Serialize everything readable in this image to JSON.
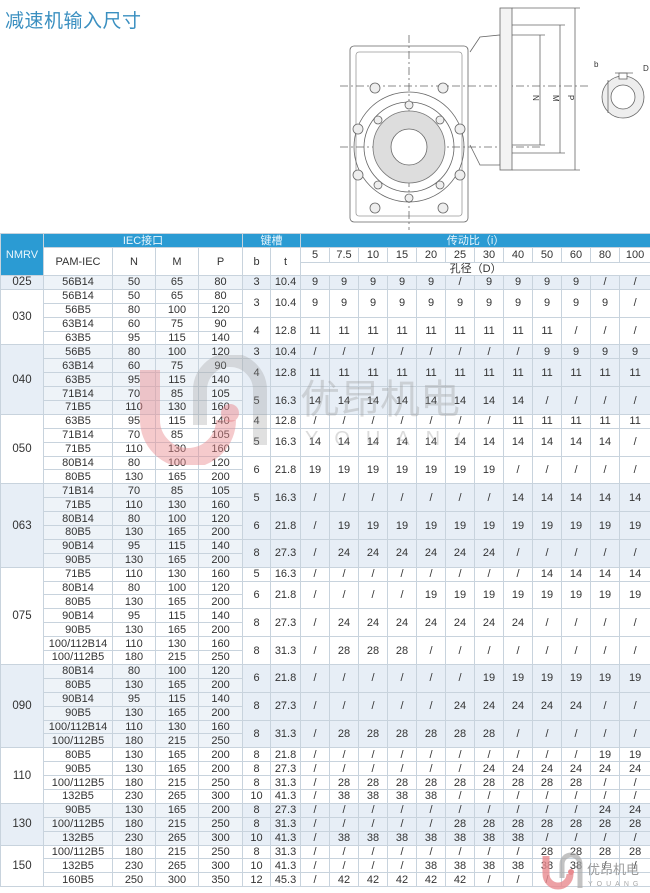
{
  "title": "减速机输入尺寸",
  "drawing": {
    "labels": {
      "n": "N",
      "m": "M",
      "p": "P",
      "b": "b",
      "t": "t",
      "d": "D"
    }
  },
  "watermark": {
    "cn": "优昂机电",
    "en": "YOUANG"
  },
  "colors": {
    "header": "#2b9bd3",
    "shade": "#e7eef6",
    "title": "#3a8fc0",
    "watermark_red": "#e88a8f"
  },
  "table": {
    "headers": {
      "nmrv": "NMRV",
      "iec": "IEC接口",
      "key": "键槽",
      "ratio": "传动比（i）",
      "pam": "PAM-IEC",
      "n": "N",
      "m": "M",
      "p": "P",
      "b": "b",
      "t": "t",
      "bore": "孔径（D）",
      "ratios": [
        "5",
        "7.5",
        "10",
        "15",
        "20",
        "25",
        "30",
        "40",
        "50",
        "60",
        "80",
        "100"
      ]
    },
    "groups": [
      {
        "nmrv": "025",
        "motors": [
          [
            "56B14",
            "50",
            "65",
            "80"
          ]
        ],
        "keys": [
          {
            "span": 1,
            "b": "3",
            "t": "10.4",
            "d": [
              "9",
              "9",
              "9",
              "9",
              "9",
              "/",
              "9",
              "9",
              "9",
              "9",
              "/",
              "/"
            ]
          }
        ]
      },
      {
        "nmrv": "030",
        "motors": [
          [
            "56B14",
            "50",
            "65",
            "80"
          ],
          [
            "56B5",
            "80",
            "100",
            "120"
          ],
          [
            "63B14",
            "60",
            "75",
            "90"
          ],
          [
            "63B5",
            "95",
            "115",
            "140"
          ]
        ],
        "keys": [
          {
            "span": 2,
            "b": "3",
            "t": "10.4",
            "d": [
              "9",
              "9",
              "9",
              "9",
              "9",
              "9",
              "9",
              "9",
              "9",
              "9",
              "9",
              "/"
            ]
          },
          {
            "span": 2,
            "b": "4",
            "t": "12.8",
            "d": [
              "11",
              "11",
              "11",
              "11",
              "11",
              "11",
              "11",
              "11",
              "11",
              "/",
              "/",
              "/"
            ]
          }
        ]
      },
      {
        "nmrv": "040",
        "motors": [
          [
            "56B5",
            "80",
            "100",
            "120"
          ],
          [
            "63B14",
            "60",
            "75",
            "90"
          ],
          [
            "63B5",
            "95",
            "115",
            "140"
          ],
          [
            "71B14",
            "70",
            "85",
            "105"
          ],
          [
            "71B5",
            "110",
            "130",
            "160"
          ]
        ],
        "keys": [
          {
            "span": 1,
            "b": "3",
            "t": "10.4",
            "d": [
              "/",
              "/",
              "/",
              "/",
              "/",
              "/",
              "/",
              "/",
              "9",
              "9",
              "9",
              "9"
            ]
          },
          {
            "span": 2,
            "b": "4",
            "t": "12.8",
            "d": [
              "11",
              "11",
              "11",
              "11",
              "11",
              "11",
              "11",
              "11",
              "11",
              "11",
              "11",
              "11"
            ]
          },
          {
            "span": 2,
            "b": "5",
            "t": "16.3",
            "d": [
              "14",
              "14",
              "14",
              "14",
              "14",
              "14",
              "14",
              "14",
              "/",
              "/",
              "/",
              "/"
            ]
          }
        ]
      },
      {
        "nmrv": "050",
        "motors": [
          [
            "63B5",
            "95",
            "115",
            "140"
          ],
          [
            "71B14",
            "70",
            "85",
            "105"
          ],
          [
            "71B5",
            "110",
            "130",
            "160"
          ],
          [
            "80B14",
            "80",
            "100",
            "120"
          ],
          [
            "80B5",
            "130",
            "165",
            "200"
          ]
        ],
        "keys": [
          {
            "span": 1,
            "b": "4",
            "t": "12.8",
            "d": [
              "/",
              "/",
              "/",
              "/",
              "/",
              "/",
              "/",
              "11",
              "11",
              "11",
              "11",
              "11"
            ]
          },
          {
            "span": 2,
            "b": "5",
            "t": "16.3",
            "d": [
              "14",
              "14",
              "14",
              "14",
              "14",
              "14",
              "14",
              "14",
              "14",
              "14",
              "14",
              "/"
            ]
          },
          {
            "span": 2,
            "b": "6",
            "t": "21.8",
            "d": [
              "19",
              "19",
              "19",
              "19",
              "19",
              "19",
              "19",
              "/",
              "/",
              "/",
              "/",
              "/"
            ]
          }
        ]
      },
      {
        "nmrv": "063",
        "motors": [
          [
            "71B14",
            "70",
            "85",
            "105"
          ],
          [
            "71B5",
            "110",
            "130",
            "160"
          ],
          [
            "80B14",
            "80",
            "100",
            "120"
          ],
          [
            "80B5",
            "130",
            "165",
            "200"
          ],
          [
            "90B14",
            "95",
            "115",
            "140"
          ],
          [
            "90B5",
            "130",
            "165",
            "200"
          ]
        ],
        "keys": [
          {
            "span": 2,
            "b": "5",
            "t": "16.3",
            "d": [
              "/",
              "/",
              "/",
              "/",
              "/",
              "/",
              "/",
              "14",
              "14",
              "14",
              "14",
              "14"
            ]
          },
          {
            "span": 2,
            "b": "6",
            "t": "21.8",
            "d": [
              "/",
              "19",
              "19",
              "19",
              "19",
              "19",
              "19",
              "19",
              "19",
              "19",
              "19",
              "19"
            ]
          },
          {
            "span": 2,
            "b": "8",
            "t": "27.3",
            "d": [
              "/",
              "24",
              "24",
              "24",
              "24",
              "24",
              "24",
              "/",
              "/",
              "/",
              "/",
              "/"
            ]
          }
        ]
      },
      {
        "nmrv": "075",
        "motors": [
          [
            "71B5",
            "110",
            "130",
            "160"
          ],
          [
            "80B14",
            "80",
            "100",
            "120"
          ],
          [
            "80B5",
            "130",
            "165",
            "200"
          ],
          [
            "90B14",
            "95",
            "115",
            "140"
          ],
          [
            "90B5",
            "130",
            "165",
            "200"
          ],
          [
            "100/112B14",
            "110",
            "130",
            "160"
          ],
          [
            "100/112B5",
            "180",
            "215",
            "250"
          ]
        ],
        "keys": [
          {
            "span": 1,
            "b": "5",
            "t": "16.3",
            "d": [
              "/",
              "/",
              "/",
              "/",
              "/",
              "/",
              "/",
              "/",
              "14",
              "14",
              "14",
              "14"
            ]
          },
          {
            "span": 2,
            "b": "6",
            "t": "21.8",
            "d": [
              "/",
              "/",
              "/",
              "/",
              "19",
              "19",
              "19",
              "19",
              "19",
              "19",
              "19",
              "19"
            ]
          },
          {
            "span": 2,
            "b": "8",
            "t": "27.3",
            "d": [
              "/",
              "24",
              "24",
              "24",
              "24",
              "24",
              "24",
              "24",
              "/",
              "/",
              "/",
              "/"
            ]
          },
          {
            "span": 2,
            "b": "8",
            "t": "31.3",
            "d": [
              "/",
              "28",
              "28",
              "28",
              "/",
              "/",
              "/",
              "/",
              "/",
              "/",
              "/",
              "/"
            ]
          }
        ]
      },
      {
        "nmrv": "090",
        "motors": [
          [
            "80B14",
            "80",
            "100",
            "120"
          ],
          [
            "80B5",
            "130",
            "165",
            "200"
          ],
          [
            "90B14",
            "95",
            "115",
            "140"
          ],
          [
            "90B5",
            "130",
            "165",
            "200"
          ],
          [
            "100/112B14",
            "110",
            "130",
            "160"
          ],
          [
            "100/112B5",
            "180",
            "215",
            "250"
          ]
        ],
        "keys": [
          {
            "span": 2,
            "b": "6",
            "t": "21.8",
            "d": [
              "/",
              "/",
              "/",
              "/",
              "/",
              "/",
              "19",
              "19",
              "19",
              "19",
              "19",
              "19"
            ]
          },
          {
            "span": 2,
            "b": "8",
            "t": "27.3",
            "d": [
              "/",
              "/",
              "/",
              "/",
              "/",
              "24",
              "24",
              "24",
              "24",
              "24",
              "/",
              "/"
            ]
          },
          {
            "span": 2,
            "b": "8",
            "t": "31.3",
            "d": [
              "/",
              "28",
              "28",
              "28",
              "28",
              "28",
              "28",
              "/",
              "/",
              "/",
              "/",
              "/"
            ]
          }
        ]
      },
      {
        "nmrv": "110",
        "motors": [
          [
            "80B5",
            "130",
            "165",
            "200"
          ],
          [
            "90B5",
            "130",
            "165",
            "200"
          ],
          [
            "100/112B5",
            "180",
            "215",
            "250"
          ],
          [
            "132B5",
            "230",
            "265",
            "300"
          ]
        ],
        "keys": [
          {
            "span": 1,
            "b": "8",
            "t": "21.8",
            "d": [
              "/",
              "/",
              "/",
              "/",
              "/",
              "/",
              "/",
              "/",
              "/",
              "/",
              "19",
              "19"
            ]
          },
          {
            "span": 1,
            "b": "8",
            "t": "27.3",
            "d": [
              "/",
              "/",
              "/",
              "/",
              "/",
              "/",
              "24",
              "24",
              "24",
              "24",
              "24",
              "24"
            ]
          },
          {
            "span": 1,
            "b": "8",
            "t": "31.3",
            "d": [
              "/",
              "28",
              "28",
              "28",
              "28",
              "28",
              "28",
              "28",
              "28",
              "28",
              "/",
              "/"
            ]
          },
          {
            "span": 1,
            "b": "10",
            "t": "41.3",
            "d": [
              "/",
              "38",
              "38",
              "38",
              "38",
              "/",
              "/",
              "/",
              "/",
              "/",
              "/",
              "/"
            ]
          }
        ]
      },
      {
        "nmrv": "130",
        "motors": [
          [
            "90B5",
            "130",
            "165",
            "200"
          ],
          [
            "100/112B5",
            "180",
            "215",
            "250"
          ],
          [
            "132B5",
            "230",
            "265",
            "300"
          ]
        ],
        "keys": [
          {
            "span": 1,
            "b": "8",
            "t": "27.3",
            "d": [
              "/",
              "/",
              "/",
              "/",
              "/",
              "/",
              "/",
              "/",
              "/",
              "/",
              "24",
              "24"
            ]
          },
          {
            "span": 1,
            "b": "8",
            "t": "31.3",
            "d": [
              "/",
              "/",
              "/",
              "/",
              "/",
              "28",
              "28",
              "28",
              "28",
              "28",
              "28",
              "28"
            ]
          },
          {
            "span": 1,
            "b": "10",
            "t": "41.3",
            "d": [
              "/",
              "38",
              "38",
              "38",
              "38",
              "38",
              "38",
              "38",
              "/",
              "/",
              "/",
              "/"
            ]
          }
        ]
      },
      {
        "nmrv": "150",
        "motors": [
          [
            "100/112B5",
            "180",
            "215",
            "250"
          ],
          [
            "132B5",
            "230",
            "265",
            "300"
          ],
          [
            "160B5",
            "250",
            "300",
            "350"
          ]
        ],
        "keys": [
          {
            "span": 1,
            "b": "8",
            "t": "31.3",
            "d": [
              "/",
              "/",
              "/",
              "/",
              "/",
              "/",
              "/",
              "/",
              "28",
              "28",
              "28",
              "28"
            ]
          },
          {
            "span": 1,
            "b": "10",
            "t": "41.3",
            "d": [
              "/",
              "/",
              "/",
              "/",
              "38",
              "38",
              "38",
              "38",
              "38",
              "38",
              "/",
              "/"
            ]
          },
          {
            "span": 1,
            "b": "12",
            "t": "45.3",
            "d": [
              "/",
              "42",
              "42",
              "42",
              "42",
              "42",
              "/",
              "/",
              "/",
              "",
              "",
              ""
            ]
          }
        ]
      }
    ]
  }
}
